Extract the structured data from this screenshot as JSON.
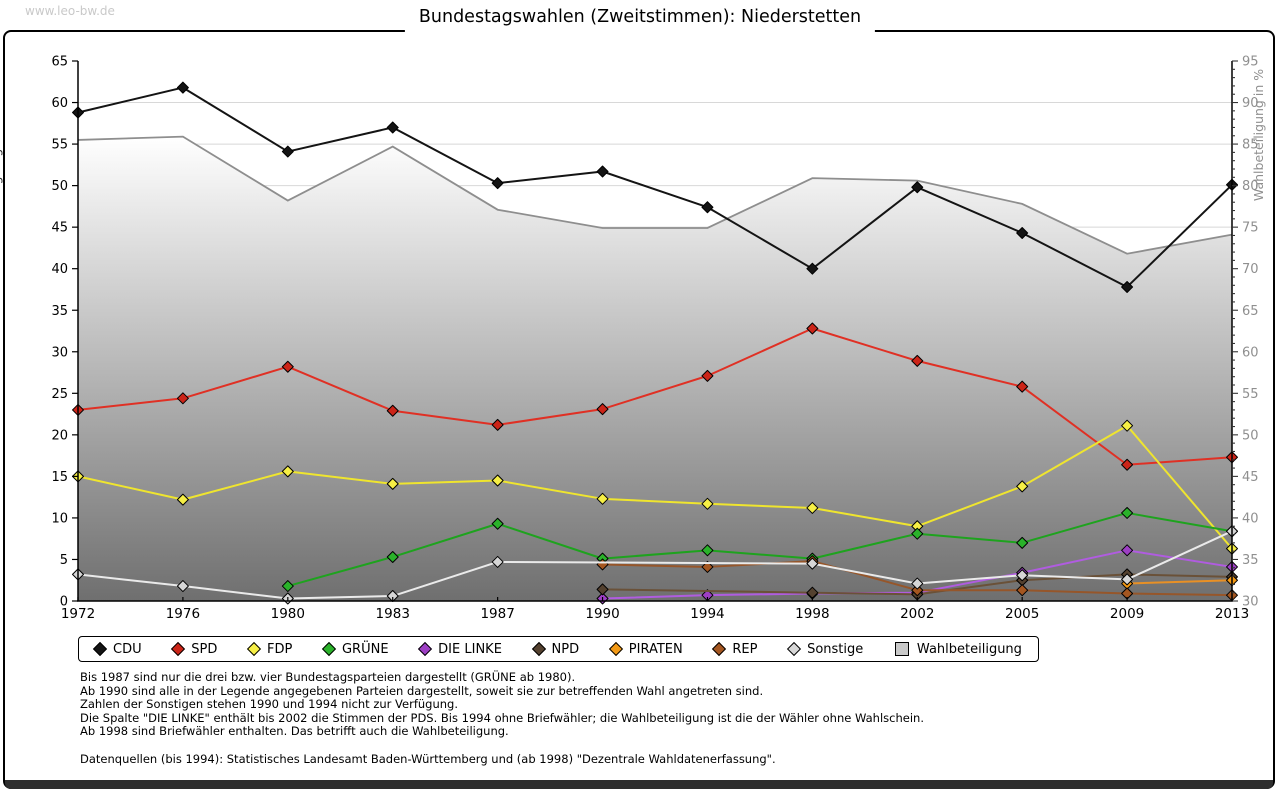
{
  "header": {
    "watermark": "www.leo-bw.de",
    "title": "Bundestagswahlen (Zweitstimmen): Niederstetten"
  },
  "chart_data": {
    "type": "line",
    "title": "Bundestagswahlen (Zweitstimmen): Niederstetten",
    "categories": [
      "1972",
      "1976",
      "1980",
      "1983",
      "1987",
      "1990",
      "1994",
      "1998",
      "2002",
      "2005",
      "2009",
      "2013"
    ],
    "left_axis": {
      "label": "gültige Stimmen in %",
      "min": 0,
      "max": 65,
      "tick_step": 5
    },
    "right_axis": {
      "label": "Wahlbeteiligung in %",
      "min": 30,
      "max": 95,
      "tick_step": 5
    },
    "grid": true,
    "legend_position": "bottom",
    "series": [
      {
        "name": "CDU",
        "axis": "left",
        "color": "#141414",
        "marker": "#141414",
        "values": [
          58.8,
          61.8,
          54.1,
          57.0,
          50.3,
          51.7,
          47.4,
          40.0,
          49.8,
          44.3,
          37.8,
          50.1
        ]
      },
      {
        "name": "SPD",
        "axis": "left",
        "color": "#e03024",
        "marker": "#cc2418",
        "values": [
          23.0,
          24.4,
          28.2,
          22.9,
          21.2,
          23.1,
          27.1,
          32.8,
          28.9,
          25.8,
          16.4,
          17.3
        ]
      },
      {
        "name": "FDP",
        "axis": "left",
        "color": "#efe52e",
        "marker": "#f6ef45",
        "values": [
          15.0,
          12.2,
          15.6,
          14.1,
          14.5,
          12.3,
          11.7,
          11.2,
          9.0,
          13.8,
          21.1,
          6.3
        ]
      },
      {
        "name": "GRÜNE",
        "axis": "left",
        "color": "#1ea31e",
        "marker": "#2ab22a",
        "values": [
          null,
          null,
          1.8,
          5.3,
          9.3,
          5.1,
          6.1,
          5.1,
          8.1,
          7.0,
          10.6,
          8.4
        ]
      },
      {
        "name": "DIE LINKE",
        "axis": "left",
        "color": "#b05ce0",
        "marker": "#9d3fc4",
        "values": [
          null,
          null,
          null,
          null,
          null,
          0.3,
          0.7,
          0.9,
          1.0,
          3.4,
          6.1,
          4.1
        ]
      },
      {
        "name": "NPD",
        "axis": "left",
        "color": "#6a5138",
        "marker": "#54412f",
        "values": [
          null,
          null,
          null,
          null,
          null,
          1.4,
          null,
          1.0,
          0.8,
          2.5,
          3.2,
          2.9
        ]
      },
      {
        "name": "PIRATEN",
        "axis": "left",
        "color": "#e89025",
        "marker": "#f49a15",
        "values": [
          null,
          null,
          null,
          null,
          null,
          null,
          null,
          null,
          null,
          null,
          2.1,
          2.5
        ]
      },
      {
        "name": "REP",
        "axis": "left",
        "color": "#96562a",
        "marker": "#a45620",
        "values": [
          null,
          null,
          null,
          null,
          null,
          4.4,
          4.1,
          4.8,
          1.3,
          1.3,
          0.9,
          0.7
        ]
      },
      {
        "name": "Sonstige",
        "axis": "left",
        "color": "#eaeaea",
        "marker": "#d6d6d6",
        "values": [
          3.2,
          1.8,
          0.3,
          0.6,
          4.7,
          null,
          null,
          4.5,
          2.1,
          3.1,
          2.6,
          8.4
        ]
      },
      {
        "name": "Wahlbeteiligung",
        "type": "area",
        "axis": "right",
        "color": "#8e8e8e",
        "fill_top": "#ffffff",
        "fill_bottom": "#6f6f6f",
        "marker": "#c9c9c9",
        "values": [
          85.5,
          85.9,
          78.2,
          84.7,
          77.1,
          74.9,
          74.9,
          80.9,
          80.6,
          77.8,
          71.8,
          74.1
        ]
      }
    ]
  },
  "footnotes": [
    "Bis 1987 sind nur die drei bzw. vier Bundestagsparteien dargestellt (GRÜNE ab 1980).",
    "Ab 1990 sind alle in der Legende angegebenen Parteien dargestellt, soweit sie zur betreffenden Wahl angetreten sind.",
    "Zahlen der Sonstigen stehen 1990 und 1994 nicht zur Verfügung.",
    "Die Spalte \"DIE LINKE\" enthält bis 2002 die Stimmen der PDS. Bis 1994 ohne Briefwähler; die Wahlbeteiligung ist die der Wähler ohne Wahlschein.",
    "Ab 1998 sind Briefwähler enthalten. Das betrifft auch die Wahlbeteiligung.",
    "",
    "Datenquellen (bis 1994): Statistisches Landesamt Baden-Württemberg und (ab 1998) \"Dezentrale Wahldatenerfassung\"."
  ]
}
